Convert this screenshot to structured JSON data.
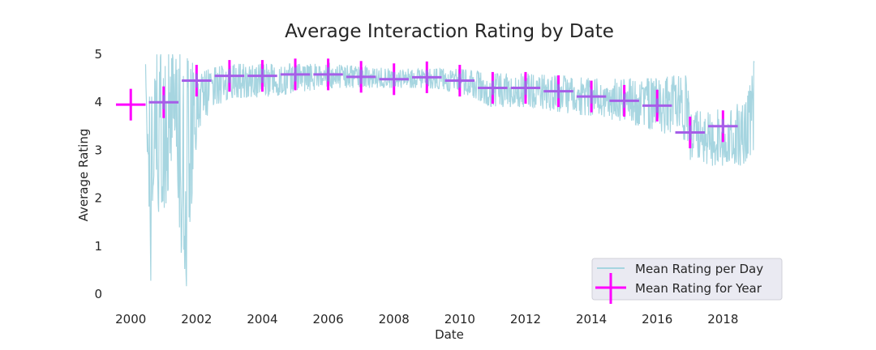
{
  "chart_data": {
    "type": "line",
    "title": "Average Interaction Rating by Date",
    "xlabel": "Date",
    "ylabel": "Average Rating",
    "xlim": [
      1999.6,
      2019.2
    ],
    "ylim": [
      0,
      5
    ],
    "x_ticks": [
      2000,
      2002,
      2004,
      2006,
      2008,
      2010,
      2012,
      2014,
      2016,
      2018
    ],
    "y_ticks": [
      0,
      1,
      2,
      3,
      4,
      5
    ],
    "grid": false,
    "legend_position": "lower-right",
    "colors": {
      "daily": "#a6d5e0",
      "yearly_magenta": "#ff00ff",
      "yearly_purple": "#a55ee8",
      "legend_bg": "#eaeaf2"
    },
    "series": [
      {
        "name": "Mean Rating per Day",
        "style": "line",
        "envelope": [
          {
            "x": 2000.45,
            "low": 4.5,
            "high": 5.0
          },
          {
            "x": 2000.6,
            "low": 0.0,
            "high": 4.5
          },
          {
            "x": 2000.75,
            "low": 3.0,
            "high": 5.0
          },
          {
            "x": 2000.9,
            "low": 1.0,
            "high": 5.0
          },
          {
            "x": 2001.1,
            "low": 2.0,
            "high": 5.0
          },
          {
            "x": 2001.3,
            "low": 3.0,
            "high": 5.0
          },
          {
            "x": 2001.5,
            "low": 1.0,
            "high": 5.0
          },
          {
            "x": 2001.7,
            "low": 0.0,
            "high": 5.0
          },
          {
            "x": 2001.9,
            "low": 2.5,
            "high": 4.8
          },
          {
            "x": 2002.1,
            "low": 3.4,
            "high": 4.6
          },
          {
            "x": 2002.4,
            "low": 3.8,
            "high": 4.7
          },
          {
            "x": 2003.0,
            "low": 4.1,
            "high": 4.8
          },
          {
            "x": 2004.0,
            "low": 4.1,
            "high": 4.8
          },
          {
            "x": 2005.0,
            "low": 4.2,
            "high": 4.8
          },
          {
            "x": 2006.0,
            "low": 4.3,
            "high": 4.8
          },
          {
            "x": 2007.0,
            "low": 4.3,
            "high": 4.75
          },
          {
            "x": 2008.0,
            "low": 4.3,
            "high": 4.7
          },
          {
            "x": 2009.0,
            "low": 4.3,
            "high": 4.7
          },
          {
            "x": 2010.0,
            "low": 4.2,
            "high": 4.7
          },
          {
            "x": 2011.0,
            "low": 3.9,
            "high": 4.6
          },
          {
            "x": 2012.0,
            "low": 3.9,
            "high": 4.6
          },
          {
            "x": 2013.0,
            "low": 3.8,
            "high": 4.55
          },
          {
            "x": 2014.0,
            "low": 3.7,
            "high": 4.5
          },
          {
            "x": 2015.0,
            "low": 3.6,
            "high": 4.5
          },
          {
            "x": 2016.0,
            "low": 3.4,
            "high": 4.5
          },
          {
            "x": 2016.9,
            "low": 3.2,
            "high": 4.6
          },
          {
            "x": 2017.0,
            "low": 2.8,
            "high": 3.8
          },
          {
            "x": 2018.0,
            "low": 2.6,
            "high": 3.9
          },
          {
            "x": 2018.7,
            "low": 2.7,
            "high": 4.0
          },
          {
            "x": 2018.9,
            "low": 3.0,
            "high": 4.6
          },
          {
            "x": 2018.95,
            "low": 3.0,
            "high": 5.0
          }
        ]
      },
      {
        "name": "Mean Rating for Year",
        "style": "errorbar",
        "points": [
          {
            "x": 2000,
            "y": 3.95,
            "yerr": 0.33,
            "color": "#ff00ff"
          },
          {
            "x": 2001,
            "y": 4.0,
            "yerr": 0.33,
            "color": "#a55ee8"
          },
          {
            "x": 2002,
            "y": 4.45,
            "yerr": 0.33,
            "color": "#a55ee8"
          },
          {
            "x": 2003,
            "y": 4.55,
            "yerr": 0.33,
            "color": "#a55ee8"
          },
          {
            "x": 2004,
            "y": 4.55,
            "yerr": 0.33,
            "color": "#a55ee8"
          },
          {
            "x": 2005,
            "y": 4.58,
            "yerr": 0.33,
            "color": "#a55ee8"
          },
          {
            "x": 2006,
            "y": 4.58,
            "yerr": 0.33,
            "color": "#a55ee8"
          },
          {
            "x": 2007,
            "y": 4.53,
            "yerr": 0.33,
            "color": "#a55ee8"
          },
          {
            "x": 2008,
            "y": 4.48,
            "yerr": 0.33,
            "color": "#a55ee8"
          },
          {
            "x": 2009,
            "y": 4.52,
            "yerr": 0.33,
            "color": "#a55ee8"
          },
          {
            "x": 2010,
            "y": 4.45,
            "yerr": 0.33,
            "color": "#a55ee8"
          },
          {
            "x": 2011,
            "y": 4.3,
            "yerr": 0.33,
            "color": "#a55ee8"
          },
          {
            "x": 2012,
            "y": 4.3,
            "yerr": 0.33,
            "color": "#a55ee8"
          },
          {
            "x": 2013,
            "y": 4.23,
            "yerr": 0.33,
            "color": "#a55ee8"
          },
          {
            "x": 2014,
            "y": 4.12,
            "yerr": 0.33,
            "color": "#a55ee8"
          },
          {
            "x": 2015,
            "y": 4.03,
            "yerr": 0.33,
            "color": "#a55ee8"
          },
          {
            "x": 2016,
            "y": 3.93,
            "yerr": 0.33,
            "color": "#a55ee8"
          },
          {
            "x": 2017,
            "y": 3.37,
            "yerr": 0.33,
            "color": "#a55ee8"
          },
          {
            "x": 2018,
            "y": 3.5,
            "yerr": 0.33,
            "color": "#a55ee8"
          }
        ]
      }
    ]
  }
}
